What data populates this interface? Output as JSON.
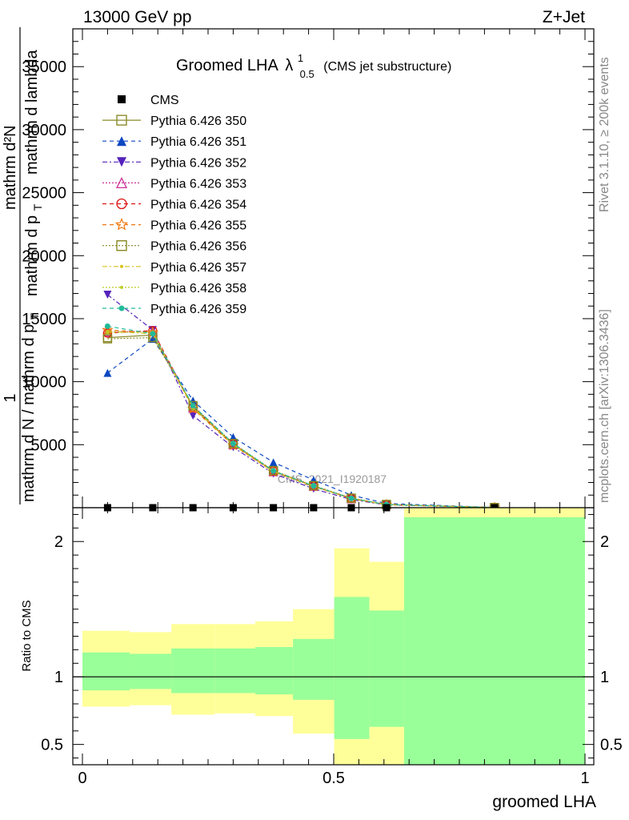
{
  "header": {
    "energy_label": "13000 GeV pp",
    "process_label": "Z+Jet"
  },
  "side_labels": {
    "rivet": "Rivet 3.1.10, ≥ 200k events",
    "mcplots": "mcplots.cern.ch [arXiv:1306.3436]"
  },
  "chart_data": [
    {
      "type": "line",
      "title_main": "Groomed LHA",
      "title_lambda": "λ",
      "title_sup": "1",
      "title_sub": "0.5",
      "title_suffix": "(CMS jet substructure)",
      "ylabel_lines": [
        "mathrm d²N",
        "mathrm d p",
        "T",
        "mathrm d lambda"
      ],
      "ylabel_prefix": "1",
      "ylabel_denominator": "mathrm d N / mathrm d p",
      "ylabel_denominator_sub": "T",
      "watermark": "CMS_2021_I1920187",
      "xlim": [
        0,
        1
      ],
      "ylim": [
        0,
        38000
      ],
      "yticks": [
        {
          "value": 5000,
          "label": "5000"
        },
        {
          "value": 10000,
          "label": "10000"
        },
        {
          "value": 15000,
          "label": "15000"
        },
        {
          "value": 20000,
          "label": "20000"
        },
        {
          "value": 25000,
          "label": "25000"
        },
        {
          "value": 30000,
          "label": "30000"
        },
        {
          "value": 35000,
          "label": "35000"
        }
      ],
      "x": [
        0.05,
        0.14,
        0.22,
        0.3,
        0.38,
        0.46,
        0.535,
        0.605,
        0.82
      ],
      "series": [
        {
          "name": "CMS",
          "color": "#000000",
          "marker": "square",
          "dash": "none",
          "values": [
            0,
            0,
            0,
            0,
            0,
            0,
            0,
            0,
            0
          ]
        },
        {
          "name": "Pythia 6.426 350",
          "color": "#8b8b2a",
          "marker": "open-square",
          "dash": "solid",
          "values": [
            13500,
            13700,
            8000,
            5000,
            2900,
            1700,
            750,
            250,
            15
          ]
        },
        {
          "name": "Pythia 6.426 351",
          "color": "#0d47c2",
          "marker": "triangle-up",
          "dash": "5,4",
          "values": [
            10700,
            13400,
            8500,
            5600,
            3600,
            2200,
            1000,
            330,
            20
          ]
        },
        {
          "name": "Pythia 6.426 352",
          "color": "#5522bb",
          "marker": "triangle-down",
          "dash": "6,3,2,3",
          "values": [
            16900,
            14100,
            7300,
            4800,
            2700,
            1500,
            650,
            220,
            12
          ]
        },
        {
          "name": "Pythia 6.426 353",
          "color": "#cc3399",
          "marker": "open-triangle",
          "dash": "2,2",
          "values": [
            13950,
            14000,
            7900,
            5000,
            2850,
            1700,
            720,
            240,
            14
          ]
        },
        {
          "name": "Pythia 6.426 354",
          "color": "#dd1111",
          "marker": "open-circle",
          "dash": "5,4",
          "values": [
            13850,
            14050,
            7950,
            5050,
            2900,
            1720,
            730,
            245,
            14
          ]
        },
        {
          "name": "Pythia 6.426 355",
          "color": "#ee7711",
          "marker": "open-star",
          "dash": "5,4",
          "values": [
            14100,
            13900,
            7850,
            4950,
            2850,
            1680,
            710,
            240,
            14
          ]
        },
        {
          "name": "Pythia 6.426 356",
          "color": "#888822",
          "marker": "open-square",
          "dash": "2,2",
          "values": [
            13400,
            13500,
            8100,
            5100,
            2950,
            1750,
            760,
            255,
            15
          ]
        },
        {
          "name": "Pythia 6.426 357",
          "color": "#d6c21b",
          "marker": "small-dot",
          "dash": "6,3,2,3",
          "values": [
            14000,
            13800,
            7950,
            5000,
            2880,
            1710,
            725,
            245,
            14
          ]
        },
        {
          "name": "Pythia 6.426 358",
          "color": "#bbcc22",
          "marker": "small-dot",
          "dash": "2,2",
          "values": [
            13900,
            13950,
            7900,
            5020,
            2890,
            1705,
            722,
            243,
            14
          ]
        },
        {
          "name": "Pythia 6.426 359",
          "color": "#22bb99",
          "marker": "dot",
          "dash": "5,4",
          "values": [
            14400,
            13800,
            8100,
            5100,
            2920,
            1730,
            740,
            248,
            15
          ]
        }
      ]
    },
    {
      "type": "area",
      "ylabel": "Ratio to CMS",
      "xlabel": "groomed LHA",
      "xlim": [
        0,
        1
      ],
      "ylim": [
        0.35,
        2.25
      ],
      "xticks": [
        {
          "value": 0,
          "label": "0"
        },
        {
          "value": 0.5,
          "label": "0.5"
        },
        {
          "value": 1,
          "label": "1"
        }
      ],
      "yticks": [
        {
          "value": 0.5,
          "label": "0.5"
        },
        {
          "value": 1,
          "label": "1"
        },
        {
          "value": 2,
          "label": "2"
        }
      ],
      "reference_line": 1,
      "band_colors": {
        "outer": "#ffff99",
        "inner": "#99ff99"
      },
      "bins": [
        {
          "x0": 0.0,
          "x1": 0.094,
          "yellow": [
            0.78,
            1.34
          ],
          "green": [
            0.9,
            1.18
          ]
        },
        {
          "x0": 0.094,
          "x1": 0.177,
          "yellow": [
            0.79,
            1.33
          ],
          "green": [
            0.91,
            1.17
          ]
        },
        {
          "x0": 0.177,
          "x1": 0.263,
          "yellow": [
            0.72,
            1.39
          ],
          "green": [
            0.88,
            1.21
          ]
        },
        {
          "x0": 0.263,
          "x1": 0.344,
          "yellow": [
            0.73,
            1.39
          ],
          "green": [
            0.88,
            1.21
          ]
        },
        {
          "x0": 0.344,
          "x1": 0.419,
          "yellow": [
            0.71,
            1.41
          ],
          "green": [
            0.87,
            1.22
          ]
        },
        {
          "x0": 0.419,
          "x1": 0.501,
          "yellow": [
            0.58,
            1.5
          ],
          "green": [
            0.83,
            1.28
          ]
        },
        {
          "x0": 0.501,
          "x1": 0.571,
          "yellow": [
            0.35,
            1.95
          ],
          "green": [
            0.54,
            1.59
          ]
        },
        {
          "x0": 0.571,
          "x1": 0.64,
          "yellow": [
            0.35,
            1.85
          ],
          "green": [
            0.63,
            1.49
          ]
        },
        {
          "x0": 0.64,
          "x1": 1.0,
          "yellow": [
            0.35,
            2.25
          ],
          "green": [
            0.35,
            2.18
          ]
        }
      ]
    }
  ]
}
